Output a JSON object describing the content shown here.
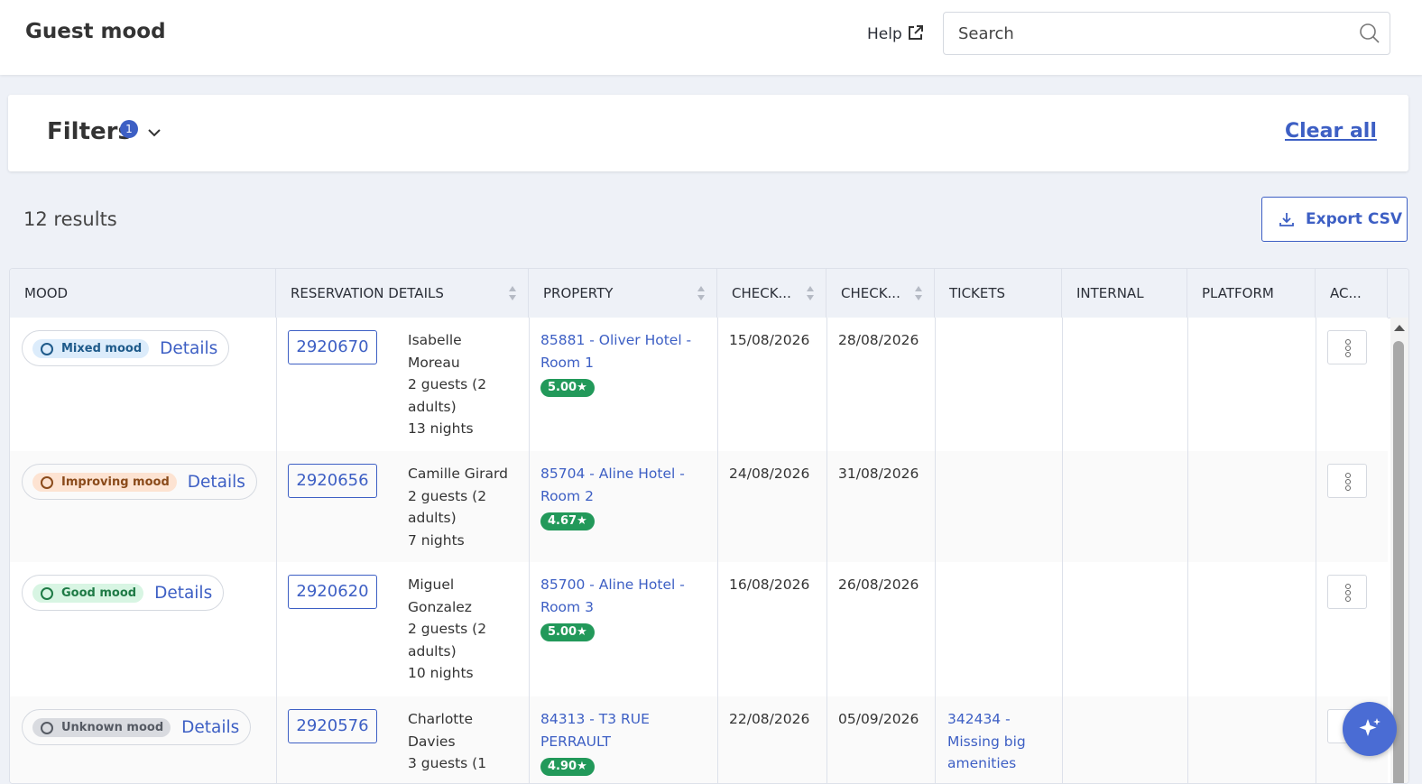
{
  "header": {
    "title": "Guest mood",
    "help": "Help",
    "search_placeholder": "Search"
  },
  "filters": {
    "label": "Filters",
    "count": 1,
    "clear": "Clear all"
  },
  "results": {
    "count": "12 results",
    "export": "Export CSV"
  },
  "table": {
    "columns": [
      "MOOD",
      "RESERVATION DETAILS",
      "PROPERTY",
      "CHECK...",
      "CHECK...",
      "TICKETS",
      "INTERNAL",
      "PLATFORM",
      "AC..."
    ],
    "rows": [
      {
        "mood": "Mixed mood",
        "details": "Details",
        "reservation": "2920670",
        "guest_name": "Isabelle Moreau",
        "guests": "2 guests (2 adults)",
        "nights": "13 nights",
        "property": "85881 - Oliver Hotel - Room 1",
        "rating": "5.00★",
        "check_in": "15/08/2026",
        "check_out": "28/08/2026"
      },
      {
        "mood": "Improving mood",
        "details": "Details",
        "reservation": "2920656",
        "guest_name": "Camille Girard",
        "guests": "2 guests (2 adults)",
        "nights": "7 nights",
        "property": "85704 - Aline Hotel - Room 2",
        "rating": "4.67★",
        "check_in": "24/08/2026",
        "check_out": "31/08/2026"
      },
      {
        "mood": "Good mood",
        "details": "Details",
        "reservation": "2920620",
        "guest_name": "Miguel Gonzalez",
        "guests": "2 guests (2 adults)",
        "nights": "10 nights",
        "property": "85700 - Aline Hotel - Room 3",
        "rating": "5.00★",
        "check_in": "16/08/2026",
        "check_out": "26/08/2026"
      },
      {
        "mood": "Unknown mood",
        "details": "Details",
        "reservation": "2920576",
        "guest_name": "Charlotte Davies",
        "guests": "3 guests (1",
        "property": "84313 - T3 RUE PERRAULT",
        "rating": "4.90★",
        "check_in": "22/08/2026",
        "check_out": "05/09/2026",
        "tickets": "342434 - Missing big amenities"
      }
    ]
  }
}
